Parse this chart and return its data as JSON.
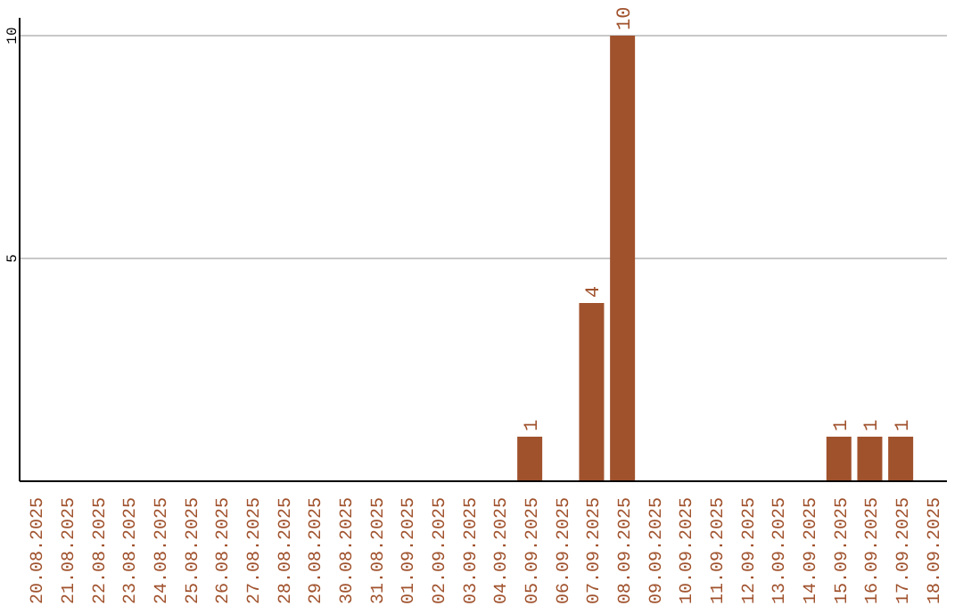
{
  "chart_data": {
    "type": "bar",
    "categories": [
      "20.08.2025",
      "21.08.2025",
      "22.08.2025",
      "23.08.2025",
      "24.08.2025",
      "25.08.2025",
      "26.08.2025",
      "27.08.2025",
      "28.08.2025",
      "29.08.2025",
      "30.08.2025",
      "31.08.2025",
      "01.09.2025",
      "02.09.2025",
      "03.09.2025",
      "04.09.2025",
      "05.09.2025",
      "06.09.2025",
      "07.09.2025",
      "08.09.2025",
      "09.09.2025",
      "10.09.2025",
      "11.09.2025",
      "12.09.2025",
      "13.09.2025",
      "14.09.2025",
      "15.09.2025",
      "16.09.2025",
      "17.09.2025",
      "18.09.2025"
    ],
    "values": [
      0,
      0,
      0,
      0,
      0,
      0,
      0,
      0,
      0,
      0,
      0,
      0,
      0,
      0,
      0,
      0,
      1,
      0,
      4,
      10,
      0,
      0,
      0,
      0,
      0,
      0,
      1,
      1,
      1,
      0
    ],
    "value_labels": [
      null,
      null,
      null,
      null,
      null,
      null,
      null,
      null,
      null,
      null,
      null,
      null,
      null,
      null,
      null,
      null,
      "1",
      null,
      "4",
      "10",
      null,
      null,
      null,
      null,
      null,
      null,
      "1",
      "1",
      "1",
      null
    ],
    "color": "#a0522d",
    "ylim": [
      0,
      10.4
    ],
    "yticks": [
      5,
      10
    ],
    "grid": "y"
  }
}
